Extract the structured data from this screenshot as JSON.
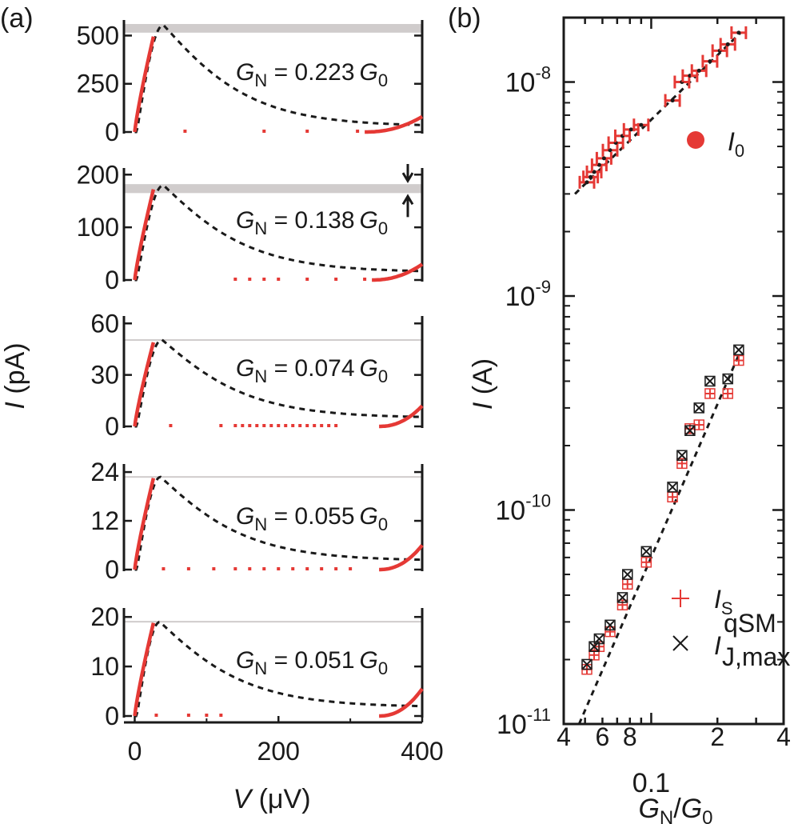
{
  "chart_data": [
    {
      "panel": "(a)",
      "type": "line",
      "xlabel_main": "V",
      "xlabel_unit": "(μV)",
      "ylabel_main": "I",
      "ylabel_unit": "(pA)",
      "x_ticks": [
        "0",
        "200",
        "400"
      ],
      "xlim": [
        -15,
        400
      ],
      "subplots": [
        {
          "annotation": {
            "G": "G",
            "sub": "N",
            "eq": " = 0.223",
            "G0": "G",
            "sub0": "0"
          },
          "y_ticks": [
            0,
            250,
            500
          ],
          "ylim": [
            0,
            560
          ],
          "band": [
            515,
            560
          ],
          "peak": {
            "v": 40,
            "i": 555
          },
          "exp_peak": 495,
          "tail": {
            "start": 320,
            "end": 80,
            "dashed_end": 75
          },
          "dashed_baseline": 30,
          "dots_v": [
            70,
            180,
            240,
            310
          ]
        },
        {
          "annotation": {
            "G": "G",
            "sub": "N",
            "eq": " = 0.138",
            "G0": "G",
            "sub0": "0"
          },
          "y_ticks": [
            0,
            100,
            200
          ],
          "ylim": [
            0,
            205
          ],
          "band": [
            165,
            182
          ],
          "peak": {
            "v": 40,
            "i": 180
          },
          "exp_peak": 172,
          "tail": {
            "start": 330,
            "end": 30,
            "dashed_end": 15
          },
          "dashed_baseline": 15,
          "dots_v": [
            140,
            160,
            180,
            200,
            240,
            280,
            320
          ],
          "arrows": true
        },
        {
          "annotation": {
            "G": "G",
            "sub": "N",
            "eq": " = 0.074",
            "G0": "G",
            "sub0": "0"
          },
          "y_ticks": [
            0,
            30,
            60
          ],
          "ylim": [
            0,
            62
          ],
          "band": [
            50,
            50.8
          ],
          "peak": {
            "v": 38,
            "i": 50.5
          },
          "exp_peak": 49,
          "tail": {
            "start": 340,
            "end": 12,
            "dashed_end": 5
          },
          "dashed_baseline": 5,
          "dots_v": [
            50,
            120,
            140,
            150,
            160,
            170,
            180,
            190,
            200,
            210,
            220,
            230,
            240,
            250,
            260,
            270,
            280
          ],
          "band_thin": true
        },
        {
          "annotation": {
            "G": "G",
            "sub": "N",
            "eq": " = 0.055",
            "G0": "G",
            "sub0": "0"
          },
          "y_ticks": [
            0,
            12,
            24
          ],
          "ylim": [
            0,
            25
          ],
          "band": [
            22.6,
            23.0
          ],
          "peak": {
            "v": 36,
            "i": 22.8
          },
          "exp_peak": 22.5,
          "tail": {
            "start": 340,
            "end": 6,
            "dashed_end": 2.2
          },
          "dashed_baseline": 2.2,
          "dots_v": [
            40,
            75,
            110,
            140,
            160,
            180,
            200,
            220,
            240,
            260,
            280,
            300
          ],
          "band_thin": true
        },
        {
          "annotation": {
            "G": "G",
            "sub": "N",
            "eq": " = 0.051",
            "G0": "G",
            "sub0": "0"
          },
          "y_ticks": [
            0,
            10,
            20
          ],
          "ylim": [
            0,
            21
          ],
          "band": [
            19.0,
            19.2
          ],
          "peak": {
            "v": 35,
            "i": 19.0
          },
          "exp_peak": 18.8,
          "tail": {
            "start": 340,
            "end": 5.5,
            "dashed_end": 1.8
          },
          "dashed_baseline": 1.8,
          "dots_v": [
            30,
            75,
            100,
            120
          ],
          "band_thin": true
        }
      ]
    },
    {
      "panel": "(b)",
      "type": "scatter",
      "x_scale": "log",
      "y_scale": "log",
      "xlabel": {
        "G": "G",
        "sub": "N",
        "slash": "/",
        "G0": "G",
        "sub0": "0"
      },
      "ylabel_main": "I",
      "ylabel_unit": "(A)",
      "xlim": [
        0.04,
        0.4
      ],
      "ylim": [
        1e-11,
        2e-08
      ],
      "x_tick_labels": [
        {
          "v": 0.04,
          "t": "4"
        },
        {
          "v": 0.06,
          "t": "6"
        },
        {
          "v": 0.08,
          "t": "8"
        },
        {
          "v": 0.2,
          "t": "2"
        },
        {
          "v": 0.4,
          "t": "4"
        }
      ],
      "x_major_label": "0.1",
      "y_tick_labels": [
        {
          "v": 1e-08,
          "base": "10",
          "exp": "-8"
        },
        {
          "v": 1e-09,
          "base": "10",
          "exp": "-9"
        },
        {
          "v": 1e-10,
          "base": "10",
          "exp": "-10"
        },
        {
          "v": 1e-11,
          "base": "10",
          "exp": "-11"
        }
      ],
      "series": [
        {
          "name": "I0",
          "label": {
            "main": "I",
            "sub": "0"
          },
          "color": "#e53935",
          "marker": "errorbar",
          "x": [
            0.051,
            0.053,
            0.055,
            0.058,
            0.061,
            0.065,
            0.069,
            0.074,
            0.081,
            0.09,
            0.125,
            0.138,
            0.15,
            0.165,
            0.185,
            0.205,
            0.223,
            0.25
          ],
          "y": [
            3.4e-09,
            3.6e-09,
            3.8e-09,
            4.1e-09,
            4.4e-09,
            4.8e-09,
            5.2e-09,
            5.6e-09,
            6e-09,
            6.3e-09,
            8.2e-09,
            1e-08,
            1.07e-08,
            1.13e-08,
            1.25e-08,
            1.4e-08,
            1.5e-08,
            1.7e-08
          ],
          "fit": [
            [
              0.045,
              3e-09
            ],
            [
              0.255,
              1.7e-08
            ]
          ]
        },
        {
          "name": "IS",
          "label": {
            "main": "I",
            "sub": "S"
          },
          "color": "#e53935",
          "marker": "plus",
          "x": [
            0.051,
            0.055,
            0.058,
            0.065,
            0.074,
            0.078,
            0.095,
            0.125,
            0.138,
            0.15,
            0.165,
            0.185,
            0.223,
            0.25
          ],
          "y": [
            1.8e-11,
            2.1e-11,
            2.3e-11,
            2.7e-11,
            3.6e-11,
            4.5e-11,
            5.7e-11,
            1.15e-10,
            1.65e-10,
            2.4e-10,
            2.5e-10,
            3.5e-10,
            3.5e-10,
            5e-10
          ]
        },
        {
          "name": "IJmax",
          "label": {
            "main": "I",
            "sub": "J,max",
            "sup": "qSM"
          },
          "color": "#1a1a1a",
          "marker": "x",
          "x": [
            0.051,
            0.055,
            0.058,
            0.065,
            0.074,
            0.078,
            0.095,
            0.125,
            0.138,
            0.15,
            0.165,
            0.185,
            0.223,
            0.25
          ],
          "y": [
            1.9e-11,
            2.3e-11,
            2.5e-11,
            2.9e-11,
            3.9e-11,
            5e-11,
            6.4e-11,
            1.28e-10,
            1.8e-10,
            2.35e-10,
            3e-10,
            4e-10,
            4.1e-10,
            5.6e-10
          ],
          "fit": [
            [
              0.047,
              1e-11
            ],
            [
              0.25,
              5.3e-10
            ]
          ]
        }
      ]
    }
  ]
}
